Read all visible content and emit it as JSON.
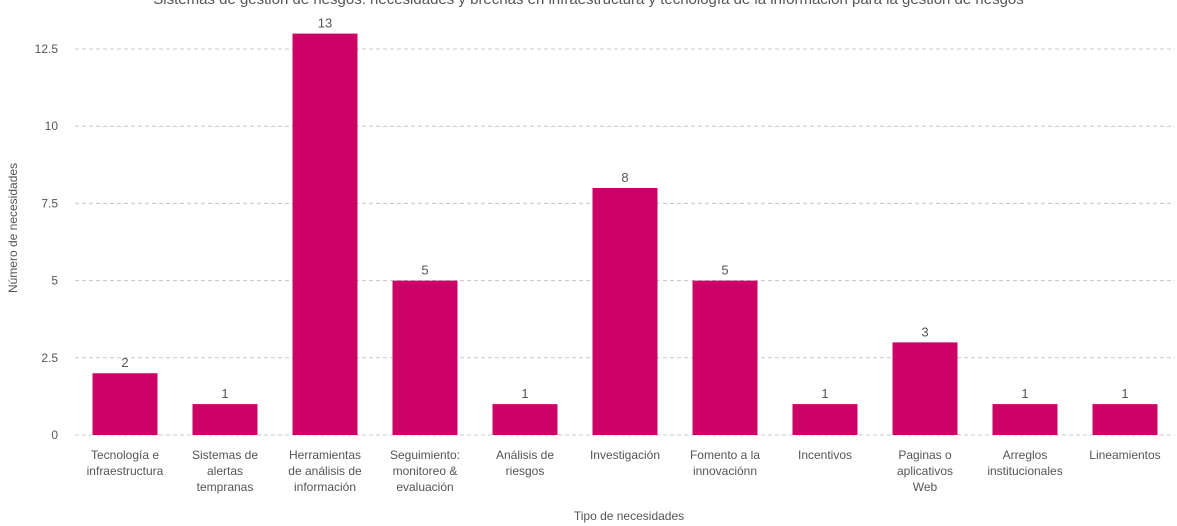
{
  "chart_data": {
    "type": "bar",
    "title": "Sistemas de gestión de riesgos: necesidades y brechas en infraestructura y tecnología de la información para la gestión de riesgos",
    "xlabel": "Tipo de necesidades",
    "ylabel": "Número de necesidades",
    "ylim": [
      0,
      13.7
    ],
    "yticks": [
      0,
      2.5,
      5,
      7.5,
      10,
      12.5
    ],
    "ytick_labels": [
      "0",
      "2.5",
      "5",
      "7.5",
      "10",
      "12.5"
    ],
    "grid": true,
    "bar_color": "#cc0066",
    "categories": [
      [
        "Tecnología e",
        "infraestructura"
      ],
      [
        "Sistemas de",
        "alertas",
        "tempranas"
      ],
      [
        "Herramientas",
        "de análisis de",
        "información"
      ],
      [
        "Seguimiento:",
        "monitoreo &",
        "evaluación"
      ],
      [
        "Análisis de",
        "riesgos"
      ],
      [
        "Investigación"
      ],
      [
        "Fomento a la",
        "innovaciónn"
      ],
      [
        "Incentivos"
      ],
      [
        "Paginas o",
        "aplicativos",
        "Web"
      ],
      [
        "Arreglos",
        "institucionales"
      ],
      [
        "Lineamientos"
      ]
    ],
    "values": [
      2,
      1,
      13,
      5,
      1,
      8,
      5,
      1,
      3,
      1,
      1
    ],
    "data_labels": [
      "2",
      "1",
      "13",
      "5",
      "1",
      "8",
      "5",
      "1",
      "3",
      "1",
      "1"
    ]
  }
}
